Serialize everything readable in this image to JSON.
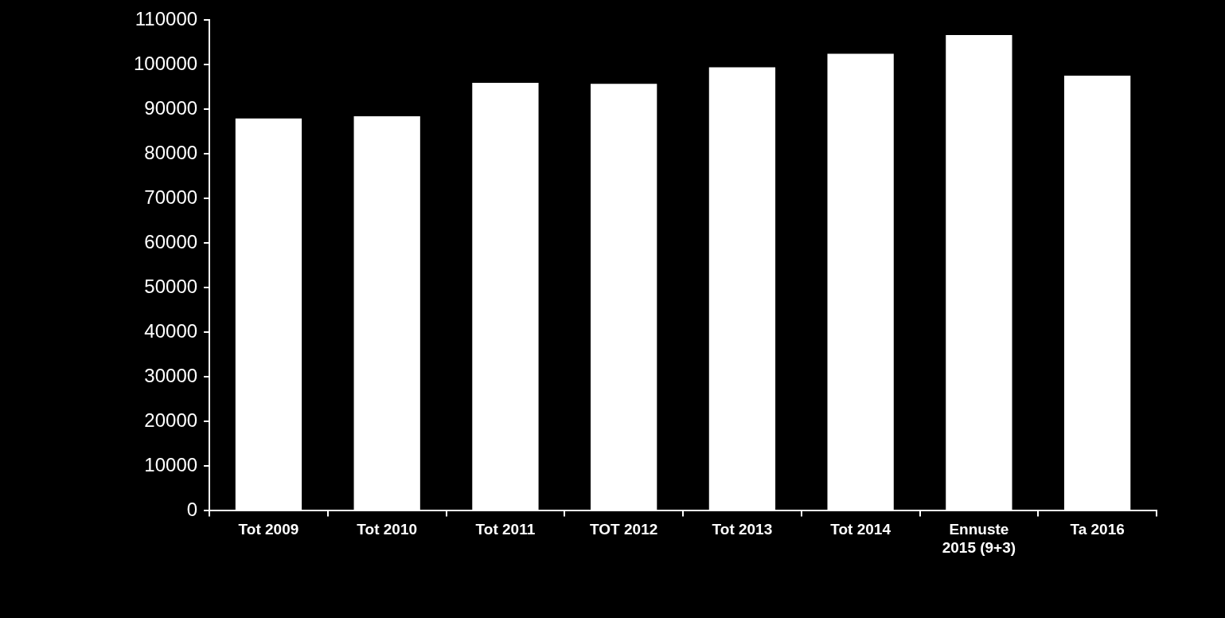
{
  "chart_data": {
    "type": "bar",
    "categories": [
      "Tot 2009",
      "Tot 2010",
      "Tot 2011",
      "TOT 2012",
      "Tot 2013",
      "Tot 2014",
      "Ennuste\n2015 (9+3)",
      "Ta 2016"
    ],
    "values": [
      87900,
      88400,
      95900,
      95700,
      99400,
      102400,
      106600,
      97500
    ],
    "color": "#ffffff",
    "ylim": [
      0,
      110000
    ],
    "yticks": [
      0,
      10000,
      20000,
      30000,
      40000,
      50000,
      60000,
      70000,
      80000,
      90000,
      100000,
      110000
    ],
    "grid": false
  }
}
